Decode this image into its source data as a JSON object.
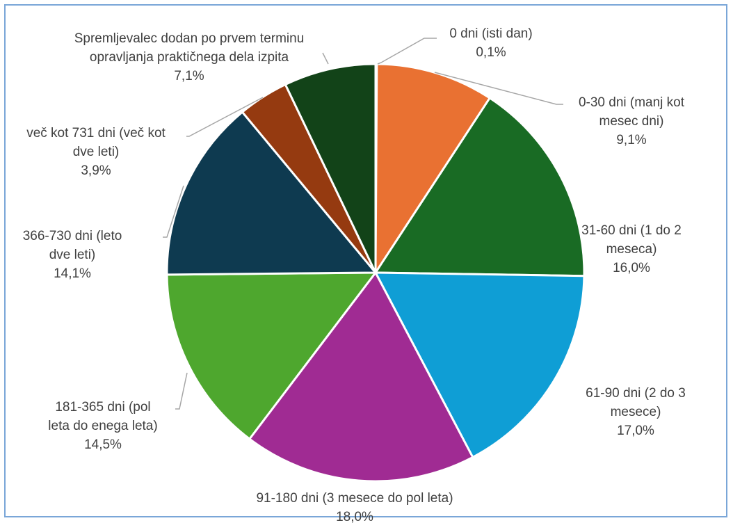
{
  "chart_data": {
    "type": "pie",
    "title": "",
    "slices": [
      {
        "label_lines": [
          "0 dni (isti dan)"
        ],
        "value": 0.1,
        "value_text": "0,1%",
        "color": "#c0c0c0"
      },
      {
        "label_lines": [
          "0-30 dni (manj kot",
          "mesec dni)"
        ],
        "value": 9.1,
        "value_text": "9,1%",
        "color": "#e97132"
      },
      {
        "label_lines": [
          "31-60 dni (1 do 2",
          "meseca)"
        ],
        "value": 16.0,
        "value_text": "16,0%",
        "color": "#196b24"
      },
      {
        "label_lines": [
          "61-90 dni (2 do 3",
          "mesece)"
        ],
        "value": 17.0,
        "value_text": "17,0%",
        "color": "#0f9ed5"
      },
      {
        "label_lines": [
          "91-180 dni (3 mesece do pol leta)"
        ],
        "value": 18.0,
        "value_text": "18,0%",
        "color": "#a02b93"
      },
      {
        "label_lines": [
          "181-365 dni (pol",
          "leta do enega leta)"
        ],
        "value": 14.5,
        "value_text": "14,5%",
        "color": "#4ea72e"
      },
      {
        "label_lines": [
          "366-730 dni (leto",
          "dve leti)"
        ],
        "value": 14.1,
        "value_text": "14,1%",
        "color": "#0e3a50"
      },
      {
        "label_lines": [
          "več kot 731 dni (več kot",
          "dve leti)"
        ],
        "value": 3.9,
        "value_text": "3,9%",
        "color": "#953a10"
      },
      {
        "label_lines": [
          "Spremljevalec dodan po prvem terminu",
          "opravljanja praktičnega dela izpita"
        ],
        "value": 7.1,
        "value_text": "7,1%",
        "color": "#124318"
      }
    ]
  }
}
